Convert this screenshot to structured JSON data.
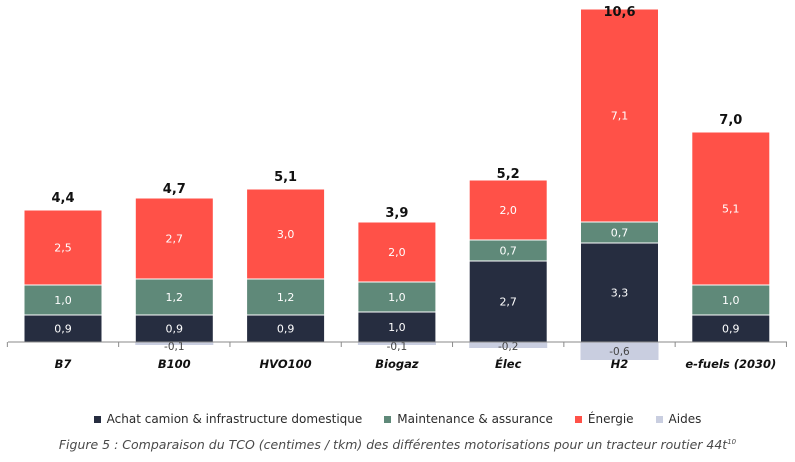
{
  "chart_data": {
    "type": "bar",
    "stacked": true,
    "categories": [
      "B7",
      "B100",
      "HVO100",
      "Biogaz",
      "Élec",
      "H2",
      "e-fuels (2030)"
    ],
    "series": [
      {
        "name": "Achat camion & infrastructure domestique",
        "color": "#262d40",
        "values": [
          0.9,
          0.9,
          0.9,
          1.0,
          2.7,
          3.3,
          0.9
        ],
        "labels": [
          "0,9",
          "0,9",
          "0,9",
          "1,0",
          "2,7",
          "3,3",
          "0,9"
        ]
      },
      {
        "name": "Maintenance & assurance",
        "color": "#5f8979",
        "values": [
          1.0,
          1.2,
          1.2,
          1.0,
          0.7,
          0.7,
          1.0
        ],
        "labels": [
          "1,0",
          "1,2",
          "1,2",
          "1,0",
          "0,7",
          "0,7",
          "1,0"
        ]
      },
      {
        "name": "Énergie",
        "color": "#ff5148",
        "values": [
          2.5,
          2.7,
          3.0,
          2.0,
          2.0,
          7.1,
          5.1
        ],
        "labels": [
          "2,5",
          "2,7",
          "3,0",
          "2,0",
          "2,0",
          "7,1",
          "5,1"
        ]
      },
      {
        "name": "Aides",
        "color": "#c9cee0",
        "values": [
          0.0,
          -0.1,
          0.0,
          -0.1,
          -0.2,
          -0.6,
          0.0
        ],
        "labels": [
          "",
          "-0,1",
          "",
          "-0,1",
          "-0,2",
          "-0,6",
          ""
        ]
      }
    ],
    "totals": [
      4.4,
      4.7,
      5.1,
      3.9,
      5.2,
      10.6,
      7.0
    ],
    "total_labels": [
      "4,4",
      "4,7",
      "5,1",
      "3,9",
      "5,2",
      "10,6",
      "7,0"
    ],
    "title": "",
    "xlabel": "",
    "ylabel": "",
    "legend_position": "bottom",
    "grid": false
  },
  "caption": {
    "text": "Figure 5 : Comparaison du TCO (centimes / tkm) des différentes motorisations pour un tracteur routier 44t",
    "superscript": "10"
  }
}
